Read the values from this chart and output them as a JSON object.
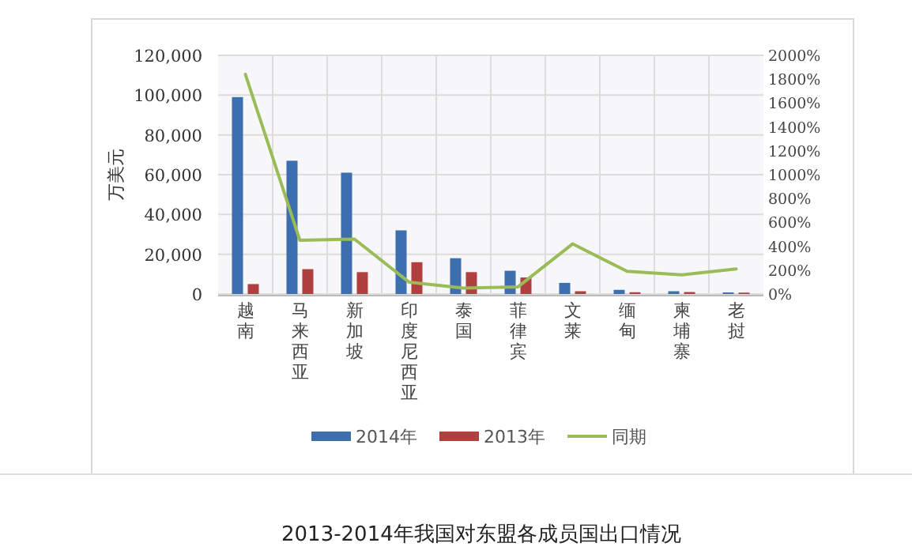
{
  "chart_data": {
    "type": "bar",
    "title": "2013-2014年我国对东盟各成员国出口情况",
    "ylabel": "万美元",
    "categories": [
      "越南",
      "马来西亚",
      "新加坡",
      "印度尼西亚",
      "泰国",
      "菲律宾",
      "文莱",
      "缅甸",
      "柬埔寨",
      "老挝"
    ],
    "series": [
      {
        "name": "2014年",
        "color": "#3d6eae",
        "values": [
          99000,
          67000,
          61000,
          32000,
          18000,
          11700,
          5600,
          2100,
          1400,
          800
        ]
      },
      {
        "name": "2013年",
        "color": "#b0403f",
        "values": [
          5000,
          12500,
          11000,
          16000,
          11000,
          8300,
          1400,
          900,
          1000,
          700
        ]
      },
      {
        "name": "同期",
        "type": "line",
        "axis": "y2",
        "color": "#9bbb59",
        "values": [
          1840,
          450,
          460,
          100,
          50,
          60,
          420,
          190,
          160,
          210
        ]
      }
    ],
    "ylim": [
      0,
      120000
    ],
    "yticks": [
      {
        "value": 0,
        "label": "0"
      },
      {
        "value": 20000,
        "label": "20,000"
      },
      {
        "value": 40000,
        "label": "40,000"
      },
      {
        "value": 60000,
        "label": "60,000"
      },
      {
        "value": 80000,
        "label": "80,000"
      },
      {
        "value": 100000,
        "label": "100,000"
      },
      {
        "value": 120000,
        "label": "120,000"
      }
    ],
    "y2lim": [
      0,
      2000
    ],
    "y2ticks": [
      {
        "value": 0,
        "label": "0%"
      },
      {
        "value": 200,
        "label": "200%"
      },
      {
        "value": 400,
        "label": "400%"
      },
      {
        "value": 600,
        "label": "600%"
      },
      {
        "value": 800,
        "label": "800%"
      },
      {
        "value": 1000,
        "label": "1000%"
      },
      {
        "value": 1200,
        "label": "1200%"
      },
      {
        "value": 1400,
        "label": "1400%"
      },
      {
        "value": 1600,
        "label": "1600%"
      },
      {
        "value": 1800,
        "label": "1800%"
      },
      {
        "value": 2000,
        "label": "2000%"
      }
    ],
    "grid": true,
    "legend": "bottom"
  }
}
